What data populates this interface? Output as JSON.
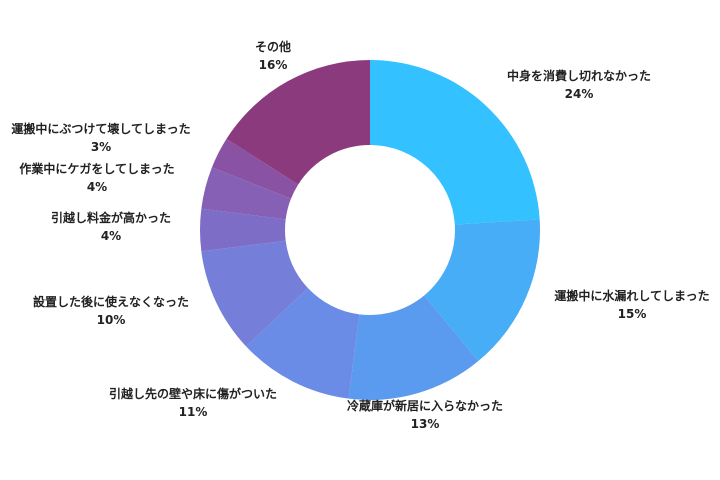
{
  "chart_data": {
    "type": "pie",
    "variant": "donut",
    "start_angle": "12 o'clock, clockwise",
    "slices": [
      {
        "label": "中身を消費し切れなかった",
        "value": 24,
        "display": "24%",
        "color": "#33c1ff"
      },
      {
        "label": "運搬中に水漏れしてしまった",
        "value": 15,
        "display": "15%",
        "color": "#47adf7"
      },
      {
        "label": "冷蔵庫が新居に入らなかった",
        "value": 13,
        "display": "13%",
        "color": "#5a9bef"
      },
      {
        "label": "引越し先の壁や床に傷がついた",
        "value": 11,
        "display": "11%",
        "color": "#6b8ce6"
      },
      {
        "label": "設置した後に使えなくなった",
        "value": 10,
        "display": "10%",
        "color": "#757ed8"
      },
      {
        "label": "引越し料金が高かった",
        "value": 4,
        "display": "4%",
        "color": "#7d6dc6"
      },
      {
        "label": "作業中にケガをしてしまった",
        "value": 4,
        "display": "4%",
        "color": "#8560b5"
      },
      {
        "label": "運搬中にぶつけて壊してしまった",
        "value": 3,
        "display": "3%",
        "color": "#8a52a3"
      },
      {
        "label": "その他",
        "value": 16,
        "display": "16%",
        "color": "#8c3a7e"
      }
    ]
  }
}
